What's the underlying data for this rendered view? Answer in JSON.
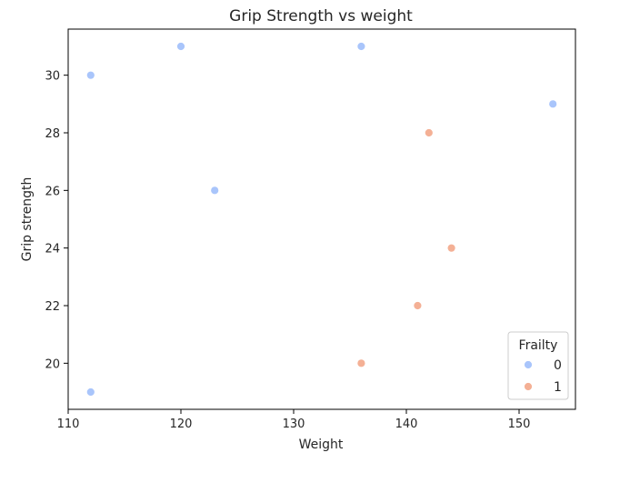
{
  "chart_data": {
    "type": "scatter",
    "title": "Grip Strength vs weight",
    "xlabel": "Weight",
    "ylabel": "Grip strength",
    "xlim": [
      110,
      155
    ],
    "ylim": [
      18.4,
      31.6
    ],
    "xticks": [
      110,
      120,
      130,
      140,
      150
    ],
    "yticks": [
      20,
      22,
      24,
      26,
      28,
      30
    ],
    "grid": false,
    "legend": {
      "title": "Frailty",
      "placement": "lower-right",
      "entries": [
        {
          "label": "0",
          "color": "#a9c5fb"
        },
        {
          "label": "1",
          "color": "#f4b095"
        }
      ]
    },
    "series": [
      {
        "name": "0",
        "color": "#a9c5fb",
        "points": [
          {
            "x": 112,
            "y": 30
          },
          {
            "x": 120,
            "y": 31
          },
          {
            "x": 136,
            "y": 31
          },
          {
            "x": 153,
            "y": 29
          },
          {
            "x": 123,
            "y": 26
          },
          {
            "x": 112,
            "y": 19
          }
        ]
      },
      {
        "name": "1",
        "color": "#f4b095",
        "points": [
          {
            "x": 142,
            "y": 28
          },
          {
            "x": 144,
            "y": 24
          },
          {
            "x": 141,
            "y": 22
          },
          {
            "x": 136,
            "y": 20
          }
        ]
      }
    ]
  }
}
